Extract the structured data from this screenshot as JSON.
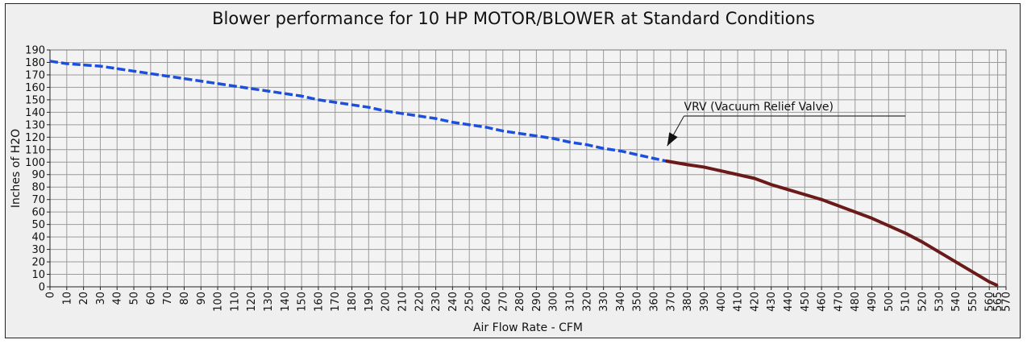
{
  "chart_data": {
    "type": "line",
    "title": "Blower performance for 10 HP MOTOR/BLOWER at Standard Conditions",
    "xlabel": "Air Flow Rate - CFM",
    "ylabel": "Inches of H2O",
    "xlim": [
      0,
      570
    ],
    "ylim": [
      0,
      190
    ],
    "x_ticks": [
      0,
      10,
      20,
      30,
      40,
      50,
      60,
      70,
      80,
      90,
      100,
      110,
      120,
      130,
      140,
      150,
      160,
      170,
      180,
      190,
      200,
      210,
      220,
      230,
      240,
      250,
      260,
      270,
      280,
      290,
      300,
      310,
      320,
      330,
      340,
      350,
      360,
      370,
      380,
      390,
      400,
      410,
      420,
      430,
      440,
      450,
      460,
      470,
      480,
      490,
      500,
      510,
      520,
      530,
      540,
      550,
      560,
      565,
      570
    ],
    "y_ticks": [
      0,
      10,
      20,
      30,
      40,
      50,
      60,
      70,
      80,
      90,
      100,
      110,
      120,
      130,
      140,
      150,
      160,
      170,
      180,
      190
    ],
    "grid": true,
    "series": [
      {
        "style": "dashed",
        "color": "#1a4fe0",
        "x": [
          0,
          10,
          20,
          30,
          40,
          50,
          60,
          70,
          80,
          90,
          100,
          110,
          120,
          130,
          140,
          150,
          160,
          170,
          180,
          190,
          200,
          210,
          220,
          230,
          240,
          250,
          260,
          270,
          280,
          290,
          300,
          310,
          320,
          330,
          340,
          350,
          360,
          367
        ],
        "y": [
          181,
          179,
          178,
          177,
          175,
          173,
          171,
          169,
          167,
          165,
          163,
          161,
          159,
          157,
          155,
          153,
          150,
          148,
          146,
          144,
          141,
          139,
          137,
          135,
          132,
          130,
          128,
          125,
          123,
          121,
          119,
          116,
          114,
          111,
          109,
          106,
          103,
          101
        ]
      },
      {
        "style": "solid",
        "color": "#6b1a1a",
        "x": [
          367,
          380,
          390,
          400,
          410,
          420,
          430,
          440,
          450,
          460,
          470,
          480,
          490,
          500,
          510,
          520,
          530,
          540,
          550,
          560,
          565
        ],
        "y": [
          101,
          98,
          96,
          93,
          90,
          87,
          82,
          78,
          74,
          70,
          65,
          60,
          55,
          49,
          43,
          36,
          28,
          20,
          12,
          4,
          1
        ]
      }
    ],
    "annotations": [
      {
        "text": "VRV (Vacuum Relief Valve)",
        "arrow_tip": [
          368,
          113
        ],
        "arrow_elbow": [
          378,
          137
        ],
        "line_end_x": 510
      }
    ]
  }
}
